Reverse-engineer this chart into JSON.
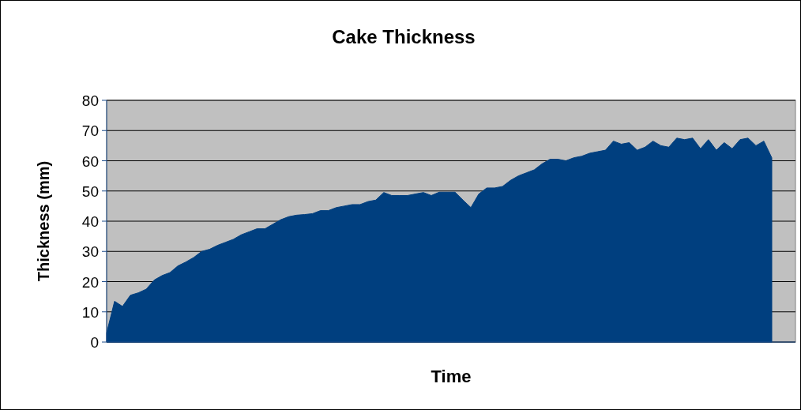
{
  "chart_data": {
    "type": "area",
    "title": "Cake Thickness",
    "xlabel": "Time",
    "ylabel": "Thickness (mm)",
    "categories": [
      null,
      null,
      null,
      null,
      null,
      null,
      null,
      null,
      null,
      null,
      null,
      null,
      null,
      null,
      null,
      null,
      null,
      null,
      null,
      null,
      null,
      null,
      null,
      null,
      null,
      null,
      null,
      null,
      null,
      null,
      null,
      null,
      null,
      null,
      null,
      null,
      null,
      null,
      null,
      null,
      null,
      null,
      null,
      null,
      null,
      null,
      null,
      null,
      null,
      null,
      null,
      null,
      null,
      null,
      null,
      null,
      null,
      null,
      null,
      null,
      null,
      null,
      null,
      null,
      null,
      null,
      null,
      null,
      null,
      null,
      null,
      null,
      null,
      null,
      null,
      null,
      null,
      null,
      null,
      null,
      null,
      null,
      null,
      null,
      null
    ],
    "series": [
      {
        "color": "#003f7f",
        "values": [
          3,
          13.5,
          11.8,
          15.5,
          16.3,
          17.5,
          20.5,
          22,
          23,
          25.2,
          26.5,
          28,
          30,
          30.7,
          32,
          33,
          34,
          35.5,
          36.5,
          37.5,
          37.5,
          39,
          40.5,
          41.5,
          42,
          42.2,
          42.5,
          43.5,
          43.5,
          44.5,
          45,
          45.5,
          45.5,
          46.5,
          47,
          49.5,
          48.5,
          48.5,
          48.5,
          49,
          49.5,
          48.5,
          49.6,
          49.6,
          49.6,
          47,
          44.5,
          49,
          51,
          51,
          51.5,
          53.5,
          55,
          56,
          57,
          59,
          60.5,
          60.5,
          60,
          61,
          61.5,
          62.5,
          63,
          63.5,
          66.5,
          65.5,
          66,
          63.5,
          64.5,
          66.5,
          65,
          64.5,
          67.5,
          67,
          67.5,
          64,
          67,
          63.5,
          66,
          64,
          67,
          67.5,
          65,
          66.5,
          61
        ]
      }
    ],
    "ylim": [
      0,
      80
    ],
    "yticks": [
      0,
      10,
      20,
      30,
      40,
      50,
      60,
      70,
      80
    ],
    "grid": "y"
  }
}
